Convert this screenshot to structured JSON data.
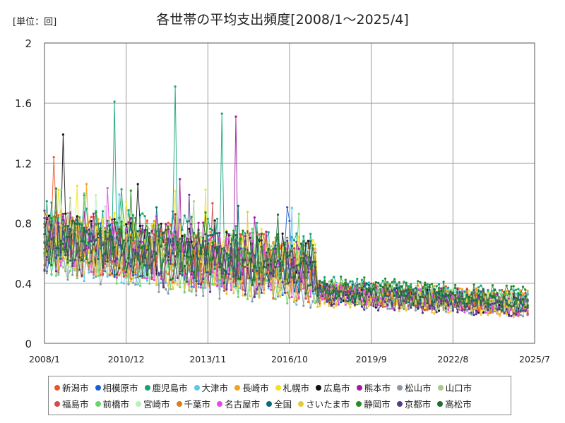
{
  "chart_data": {
    "type": "line",
    "title": "各世帯の平均支出頻度[2008/1～2025/4]",
    "unit_label": "[単位：回]",
    "x_ticks": [
      "2008/1",
      "2010/12",
      "2013/11",
      "2016/10",
      "2019/9",
      "2022/8",
      "2025/7"
    ],
    "y_ticks": [
      "0",
      "0.4",
      "0.8",
      "1.2",
      "1.6",
      "2"
    ],
    "ylim": [
      0,
      2
    ],
    "x_range": [
      "2008/1",
      "2025/7"
    ],
    "grid": true,
    "legend_position": "bottom",
    "series": [
      {
        "name": "新潟市",
        "color": "#f0532a",
        "level_early": 0.72,
        "level_late": 0.28
      },
      {
        "name": "相模原市",
        "color": "#1a5fd6",
        "level_early": 0.66,
        "level_late": 0.26
      },
      {
        "name": "鹿児島市",
        "color": "#13a37a",
        "level_early": 0.78,
        "level_late": 0.3
      },
      {
        "name": "大津市",
        "color": "#5ec6e8",
        "level_early": 0.62,
        "level_late": 0.27
      },
      {
        "name": "長崎市",
        "color": "#f2a21b",
        "level_early": 0.7,
        "level_late": 0.28
      },
      {
        "name": "札幌市",
        "color": "#f5e21c",
        "level_early": 0.74,
        "level_late": 0.26
      },
      {
        "name": "広島市",
        "color": "#111111",
        "level_early": 0.72,
        "level_late": 0.25
      },
      {
        "name": "熊本市",
        "color": "#a01ba0",
        "level_early": 0.74,
        "level_late": 0.27
      },
      {
        "name": "松山市",
        "color": "#8a99a8",
        "level_early": 0.6,
        "level_late": 0.24
      },
      {
        "name": "山口市",
        "color": "#a9c98b",
        "level_early": 0.65,
        "level_late": 0.26
      },
      {
        "name": "福島市",
        "color": "#d64a4a",
        "level_early": 0.66,
        "level_late": 0.25
      },
      {
        "name": "前橋市",
        "color": "#6bd46b",
        "level_early": 0.62,
        "level_late": 0.26
      },
      {
        "name": "宮崎市",
        "color": "#b8f0b8",
        "level_early": 0.7,
        "level_late": 0.27
      },
      {
        "name": "千葉市",
        "color": "#e07a1f",
        "level_early": 0.64,
        "level_late": 0.25
      },
      {
        "name": "名古屋市",
        "color": "#e64ae6",
        "level_early": 0.66,
        "level_late": 0.25
      },
      {
        "name": "全国",
        "color": "#0b6b7a",
        "level_early": 0.68,
        "level_late": 0.27
      },
      {
        "name": "さいたま市",
        "color": "#e8c83c",
        "level_early": 0.63,
        "level_late": 0.23
      },
      {
        "name": "静岡市",
        "color": "#2b8a2b",
        "level_early": 0.73,
        "level_late": 0.31
      },
      {
        "name": "京都市",
        "color": "#5a3a8a",
        "level_early": 0.64,
        "level_late": 0.23
      },
      {
        "name": "高松市",
        "color": "#1f6b30",
        "level_early": 0.69,
        "level_late": 0.28
      }
    ],
    "notable_peaks": [
      {
        "series": "鹿児島市",
        "x": "2012/9",
        "y": 1.71
      },
      {
        "series": "鹿児島市",
        "x": "2010/7",
        "y": 1.61
      },
      {
        "series": "鹿児島市",
        "x": "2014/5",
        "y": 1.53
      },
      {
        "series": "熊本市",
        "x": "2014/11",
        "y": 1.51
      },
      {
        "series": "広島市",
        "x": "2008/9",
        "y": 1.39
      },
      {
        "series": "新潟市",
        "x": "2008/5",
        "y": 1.24
      }
    ]
  }
}
